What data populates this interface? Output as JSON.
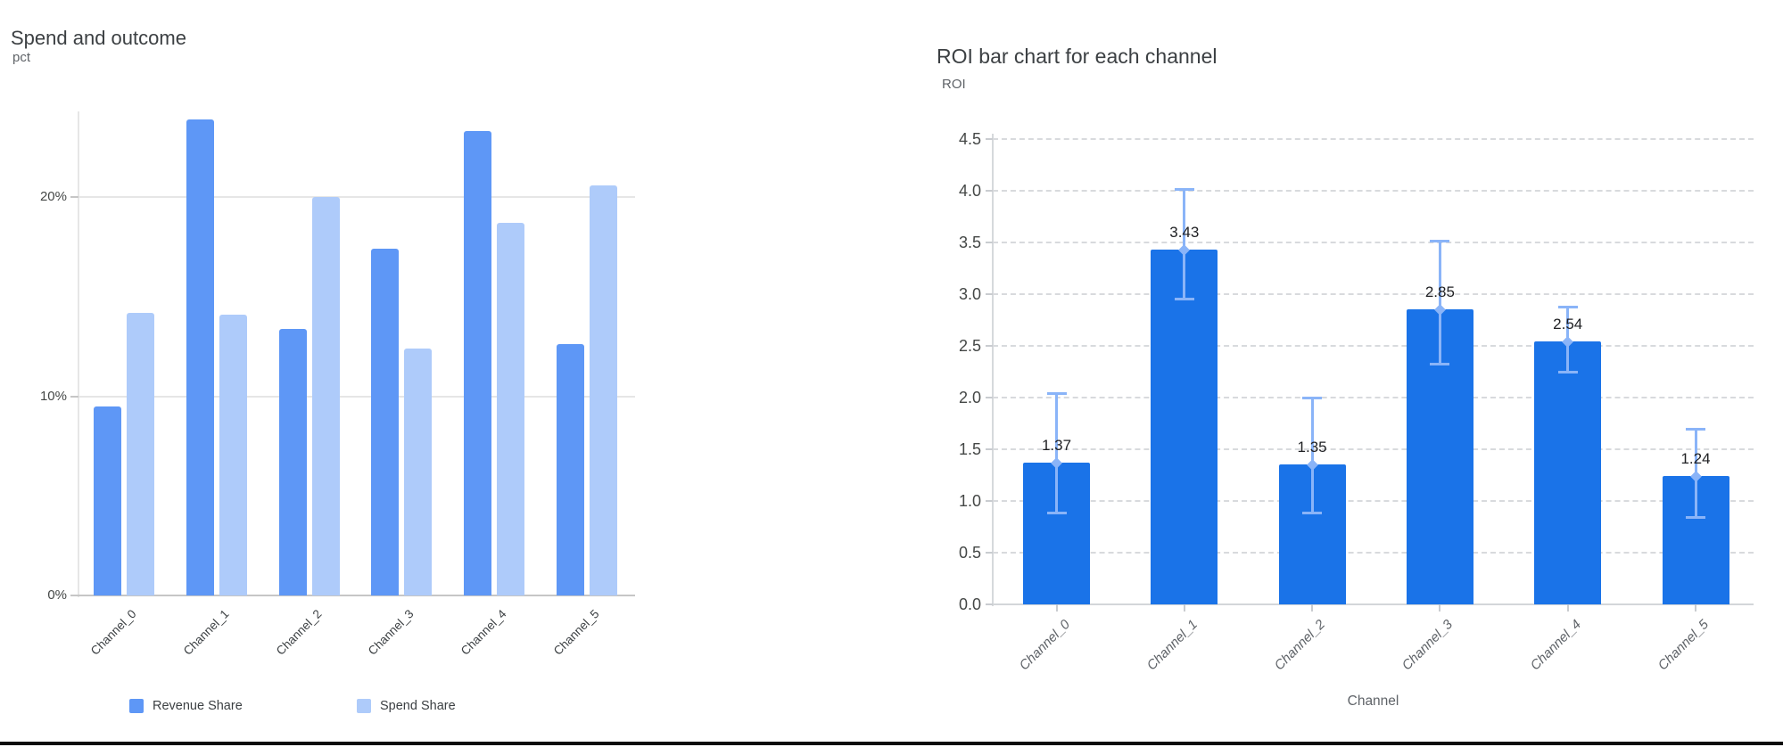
{
  "page": {
    "background": "#ffffff",
    "bottom_border_color": "#0b0b0b"
  },
  "chart_data": [
    {
      "type": "bar",
      "title": "Spend and outcome",
      "ylabel": "pct",
      "xlabel": "",
      "categories": [
        "Channel_0",
        "Channel_1",
        "Channel_2",
        "Channel_3",
        "Channel_4",
        "Channel_5"
      ],
      "series": [
        {
          "name": "Revenue Share",
          "color": "#5e97f6",
          "values": [
            9.5,
            23.9,
            13.4,
            17.4,
            23.3,
            12.6
          ]
        },
        {
          "name": "Spend Share",
          "color": "#aecbfa",
          "values": [
            14.2,
            14.1,
            20.0,
            12.4,
            18.7,
            20.6
          ]
        }
      ],
      "y_ticks": [
        {
          "value": 0,
          "label": "0%"
        },
        {
          "value": 10,
          "label": "10%"
        },
        {
          "value": 20,
          "label": "20%"
        }
      ],
      "ylim": [
        0,
        25
      ],
      "grid": "solid",
      "legend_position": "bottom"
    },
    {
      "type": "bar",
      "title": "ROI bar chart for each channel",
      "ylabel": "ROI",
      "xlabel": "Channel",
      "categories": [
        "Channel_0",
        "Channel_1",
        "Channel_2",
        "Channel_3",
        "Channel_4",
        "Channel_5"
      ],
      "values": [
        1.37,
        3.43,
        1.35,
        2.85,
        2.54,
        1.24
      ],
      "value_labels": [
        "1.37",
        "3.43",
        "1.35",
        "2.85",
        "2.54",
        "1.24"
      ],
      "error_low": [
        0.88,
        2.95,
        0.88,
        2.32,
        2.24,
        0.84
      ],
      "error_high": [
        2.04,
        4.02,
        2.0,
        3.52,
        2.88,
        1.7
      ],
      "bar_color": "#1a73e8",
      "error_bar_color": "#8ab4f8",
      "value_label_color": "#202124",
      "y_ticks": [
        {
          "value": 0.0,
          "label": "0.0"
        },
        {
          "value": 0.5,
          "label": "0.5"
        },
        {
          "value": 1.0,
          "label": "1.0"
        },
        {
          "value": 1.5,
          "label": "1.5"
        },
        {
          "value": 2.0,
          "label": "2.0"
        },
        {
          "value": 2.5,
          "label": "2.5"
        },
        {
          "value": 3.0,
          "label": "3.0"
        },
        {
          "value": 3.5,
          "label": "3.5"
        },
        {
          "value": 4.0,
          "label": "4.0"
        },
        {
          "value": 4.5,
          "label": "4.5"
        }
      ],
      "ylim": [
        0,
        4.5
      ],
      "grid": "dashed",
      "legend_position": "none"
    }
  ]
}
